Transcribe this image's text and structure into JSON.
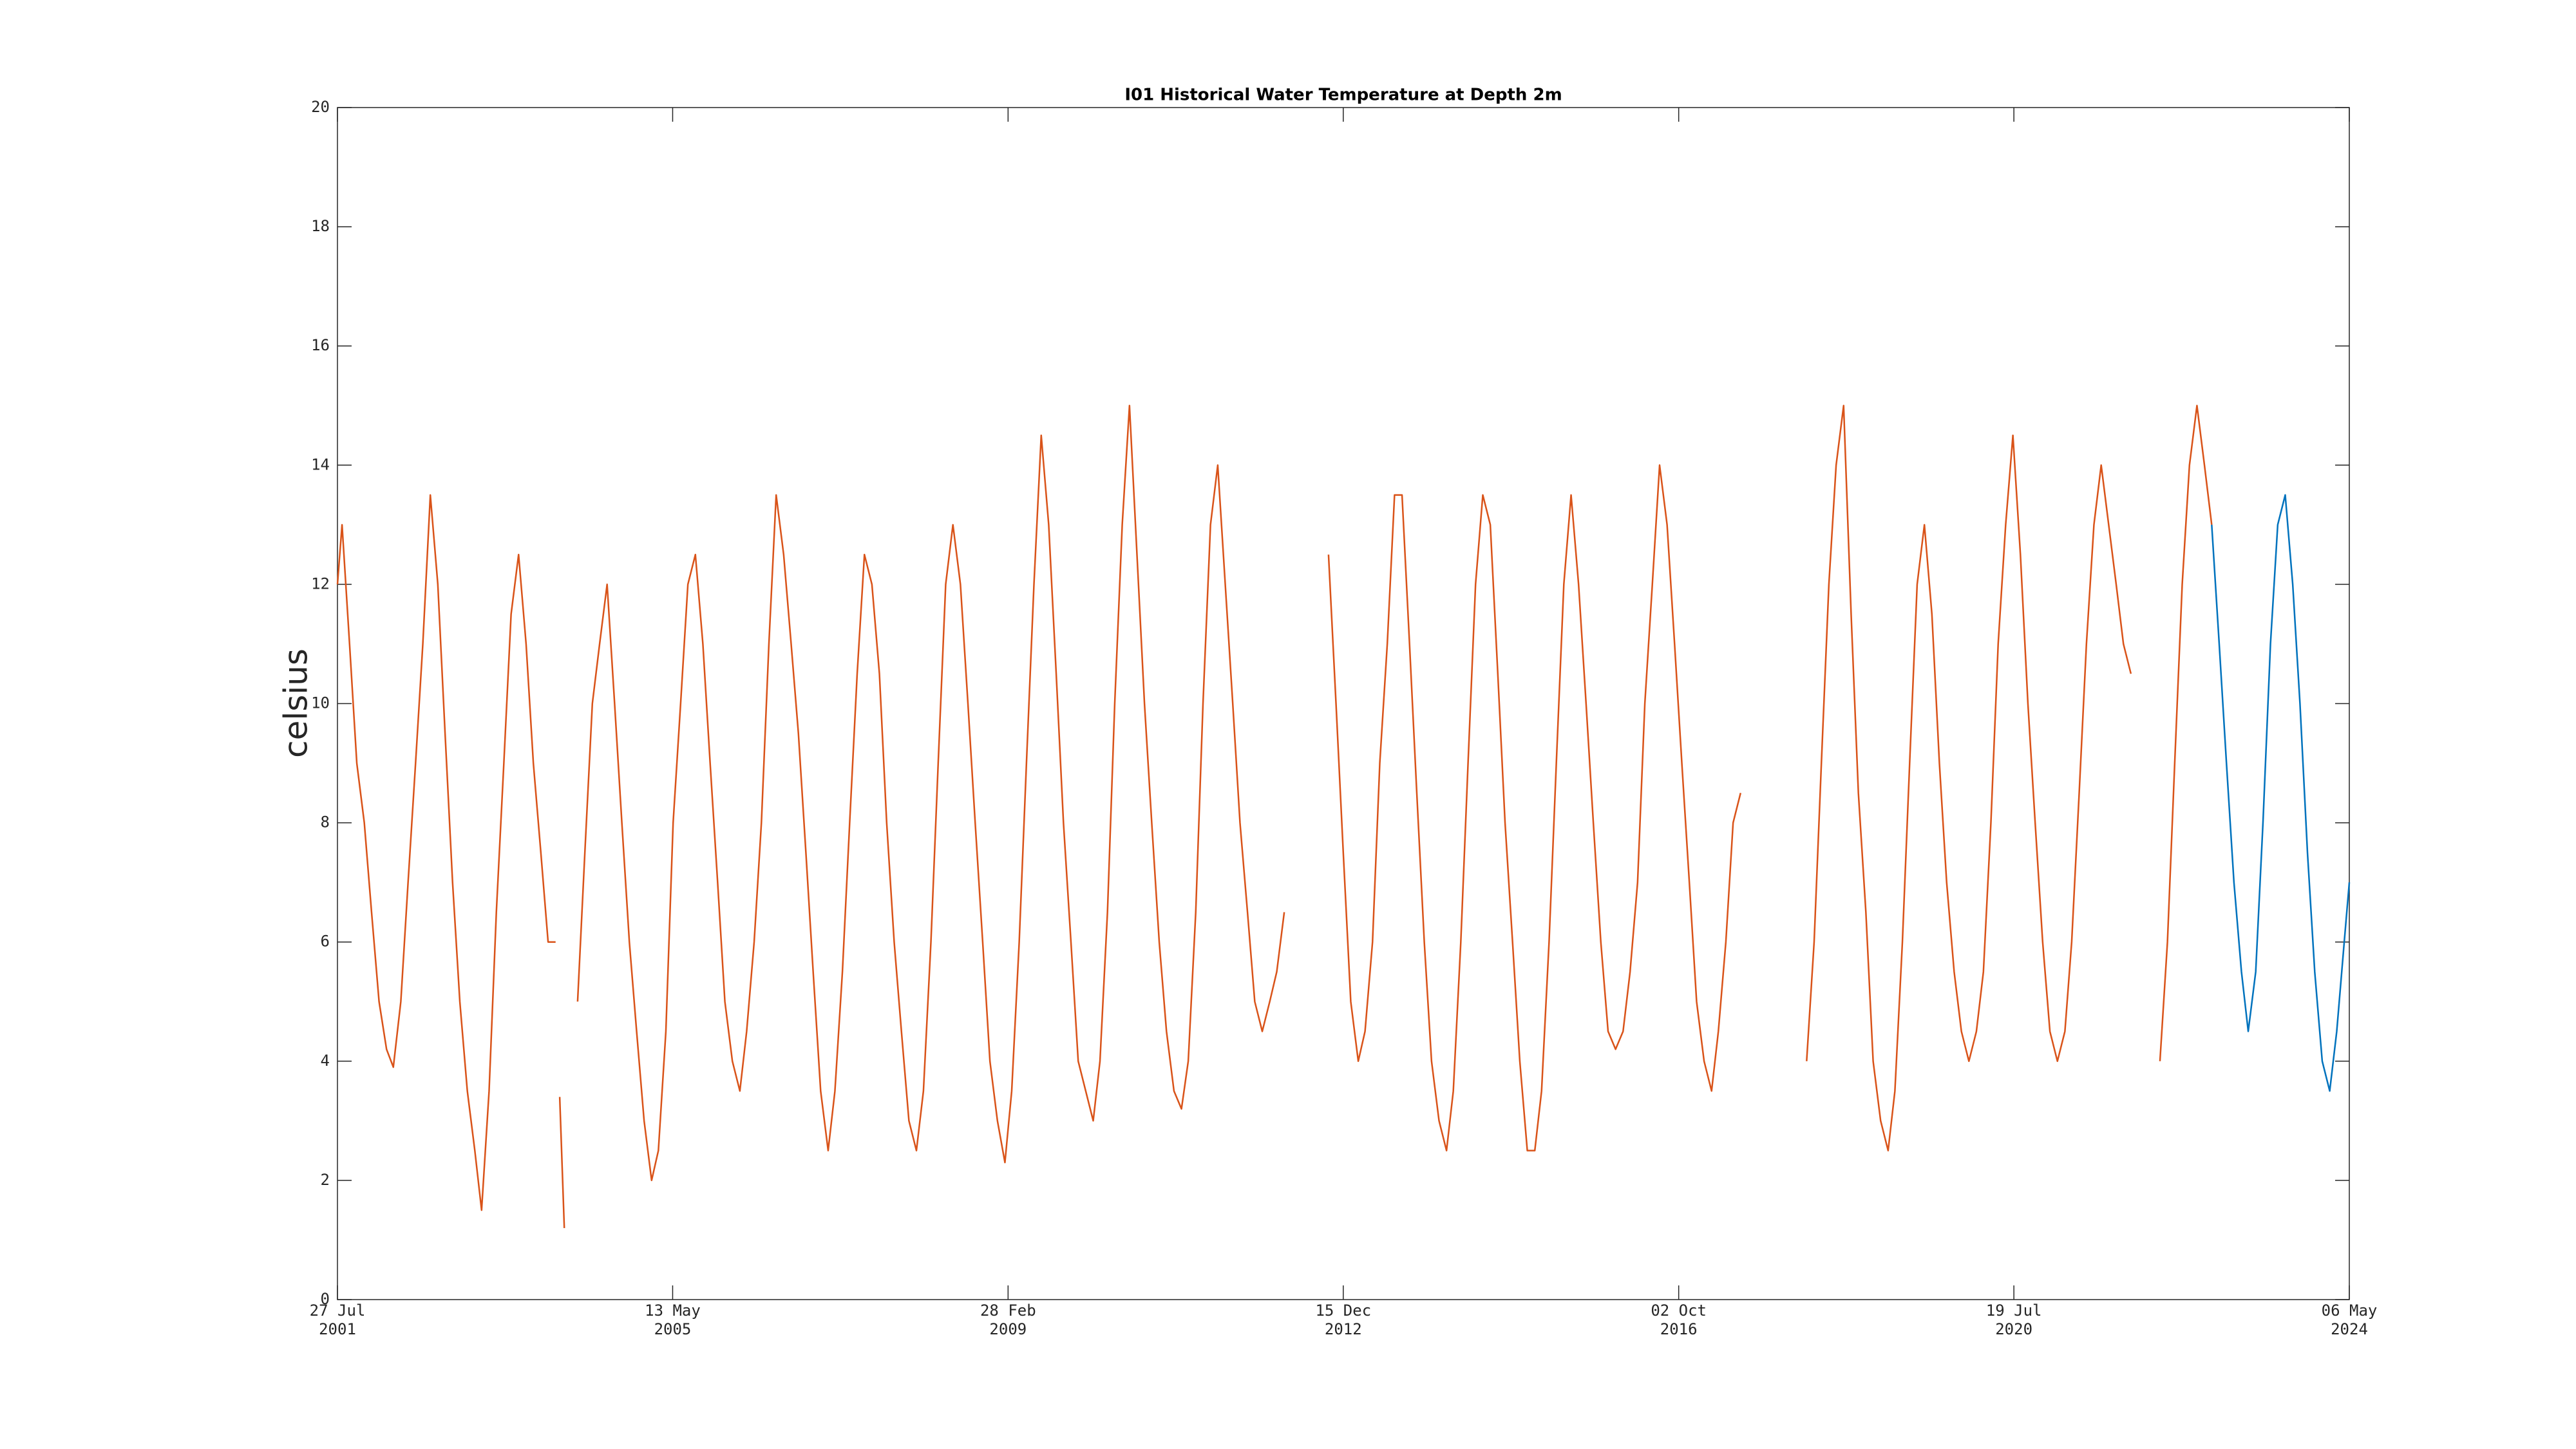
{
  "chart_data": {
    "type": "line",
    "title": "I01 Historical Water Temperature at Depth 2m",
    "y_label": "celsius",
    "xlim": [
      "2001-07-27",
      "2024-05-06"
    ],
    "xticks": [
      {
        "value": "2001-07-27",
        "label": [
          "27 Jul",
          "2001"
        ]
      },
      {
        "value": "2005-05-13",
        "label": [
          "13 May",
          "2005"
        ]
      },
      {
        "value": "2009-02-28",
        "label": [
          "28 Feb",
          "2009"
        ]
      },
      {
        "value": "2012-12-15",
        "label": [
          "15 Dec",
          "2012"
        ]
      },
      {
        "value": "2016-10-02",
        "label": [
          "02 Oct",
          "2016"
        ]
      },
      {
        "value": "2020-07-19",
        "label": [
          "19 Jul",
          "2020"
        ]
      },
      {
        "value": "2024-05-06",
        "label": [
          "06 May",
          "2024"
        ]
      }
    ],
    "ylim": [
      0,
      20
    ],
    "yticks": [
      0,
      2,
      4,
      6,
      8,
      10,
      12,
      14,
      16,
      18,
      20
    ],
    "grid": false,
    "series": [
      {
        "color": "#d95319",
        "x": [
          "2001-07-27",
          "2001-08-15",
          "2001-09-15",
          "2001-10-15",
          "2001-11-15",
          "2001-12-15",
          "2002-01-15",
          "2002-02-15",
          "2002-03-15",
          "2002-04-15",
          "2002-05-15",
          "2002-06-15",
          "2002-07-15",
          "2002-08-15",
          "2002-09-15",
          "2002-10-15",
          "2002-11-15",
          "2002-12-15",
          "2003-01-15",
          "2003-02-15",
          "2003-03-15",
          "2003-04-15",
          "2003-05-15",
          "2003-06-15",
          "2003-07-15",
          "2003-08-15",
          "2003-09-15",
          "2003-10-15",
          "2003-11-15",
          "2003-12-15",
          "2004-01-15",
          "2004-01-25",
          "2004-02-01",
          "2004-02-20",
          "2004-03-10",
          "2004-04-15",
          "2004-05-15",
          "2004-06-15",
          "2004-07-15",
          "2004-08-15",
          "2004-09-15",
          "2004-10-15",
          "2004-11-15",
          "2004-12-15",
          "2005-01-15",
          "2005-02-15",
          "2005-03-15",
          "2005-04-15",
          "2005-05-15",
          "2005-06-15",
          "2005-07-15",
          "2005-08-15",
          "2005-09-15",
          "2005-10-15",
          "2005-11-15",
          "2005-12-15",
          "2006-01-15",
          "2006-02-15",
          "2006-03-15",
          "2006-04-15",
          "2006-05-15",
          "2006-06-15",
          "2006-07-15",
          "2006-08-15",
          "2006-09-15",
          "2006-10-15",
          "2006-11-15",
          "2006-12-15",
          "2007-01-15",
          "2007-02-15",
          "2007-03-15",
          "2007-04-15",
          "2007-05-15",
          "2007-06-15",
          "2007-07-15",
          "2007-08-15",
          "2007-09-15",
          "2007-10-15",
          "2007-11-15",
          "2007-12-15",
          "2008-01-15",
          "2008-02-15",
          "2008-03-15",
          "2008-04-15",
          "2008-05-15",
          "2008-06-15",
          "2008-07-15",
          "2008-08-15",
          "2008-09-15",
          "2008-10-15",
          "2008-11-15",
          "2008-12-15",
          "2009-01-15",
          "2009-02-15",
          "2009-03-15",
          "2009-04-15",
          "2009-05-15",
          "2009-06-15",
          "2009-07-15",
          "2009-08-15",
          "2009-09-15",
          "2009-10-15",
          "2009-11-15",
          "2009-12-15",
          "2010-01-15",
          "2010-02-15",
          "2010-03-15",
          "2010-04-15",
          "2010-05-15",
          "2010-06-15",
          "2010-07-15",
          "2010-08-15",
          "2010-09-15",
          "2010-10-15",
          "2010-11-15",
          "2010-12-15",
          "2011-01-15",
          "2011-02-15",
          "2011-03-15",
          "2011-04-15",
          "2011-05-15",
          "2011-06-15",
          "2011-07-15",
          "2011-08-15",
          "2011-09-15",
          "2011-10-15",
          "2011-11-15",
          "2011-12-15",
          "2012-01-15",
          "2012-02-15",
          "2012-03-15",
          "2012-04-15",
          "2012-07-01",
          "2012-10-15",
          "2012-11-15",
          "2012-12-15",
          "2013-01-15",
          "2013-02-15",
          "2013-03-15",
          "2013-04-15",
          "2013-05-15",
          "2013-06-15",
          "2013-07-15",
          "2013-08-15",
          "2013-09-15",
          "2013-10-15",
          "2013-11-15",
          "2013-12-15",
          "2014-01-15",
          "2014-02-15",
          "2014-03-15",
          "2014-04-15",
          "2014-05-15",
          "2014-06-15",
          "2014-07-15",
          "2014-08-15",
          "2014-09-15",
          "2014-10-15",
          "2014-11-15",
          "2014-12-15",
          "2015-01-15",
          "2015-02-15",
          "2015-03-15",
          "2015-04-15",
          "2015-05-15",
          "2015-06-15",
          "2015-07-15",
          "2015-08-15",
          "2015-09-15",
          "2015-10-15",
          "2015-11-15",
          "2015-12-15",
          "2016-01-15",
          "2016-02-15",
          "2016-03-15",
          "2016-04-15",
          "2016-05-15",
          "2016-06-15",
          "2016-07-15",
          "2016-08-15",
          "2016-09-15",
          "2016-10-15",
          "2016-11-15",
          "2016-12-15",
          "2017-01-15",
          "2017-02-15",
          "2017-03-15",
          "2017-04-15",
          "2017-05-15",
          "2017-06-15",
          "2017-10-01",
          "2018-03-15",
          "2018-04-15",
          "2018-05-15",
          "2018-06-15",
          "2018-07-15",
          "2018-08-15",
          "2018-09-15",
          "2018-10-15",
          "2018-11-15",
          "2018-12-15",
          "2019-01-15",
          "2019-02-15",
          "2019-03-15",
          "2019-04-15",
          "2019-05-15",
          "2019-06-15",
          "2019-07-15",
          "2019-08-15",
          "2019-09-15",
          "2019-10-15",
          "2019-11-15",
          "2019-12-15",
          "2020-01-15",
          "2020-02-15",
          "2020-03-15",
          "2020-04-15",
          "2020-05-15",
          "2020-06-15",
          "2020-07-15",
          "2020-08-15",
          "2020-09-15",
          "2020-10-15",
          "2020-11-15",
          "2020-12-15",
          "2021-01-15",
          "2021-02-15",
          "2021-03-15",
          "2021-04-15",
          "2021-05-15",
          "2021-06-15",
          "2021-07-15",
          "2021-08-15",
          "2021-09-15",
          "2021-10-15",
          "2021-11-15",
          "2022-01-15",
          "2022-03-15",
          "2022-04-15",
          "2022-05-15",
          "2022-06-15",
          "2022-07-15",
          "2022-08-15",
          "2022-09-15",
          "2022-10-15"
        ],
        "values": [
          12,
          13,
          11,
          9,
          8,
          6.5,
          5,
          4.2,
          3.9,
          5,
          7,
          9,
          11,
          13.5,
          12,
          9.5,
          7,
          5,
          3.5,
          2.5,
          1.5,
          3.5,
          6.5,
          9,
          11.5,
          12.5,
          11,
          9,
          7.5,
          6,
          6,
          null,
          3.4,
          1.2,
          null,
          5,
          7.5,
          10,
          11,
          12,
          10,
          8,
          6,
          4.5,
          3,
          2,
          2.5,
          4.5,
          8,
          10,
          12,
          12.5,
          11,
          9,
          7,
          5,
          4,
          3.5,
          4.5,
          6,
          8,
          11,
          13.5,
          12.5,
          11,
          9.5,
          7.5,
          5.5,
          3.5,
          2.5,
          3.5,
          5.5,
          8,
          10.5,
          12.5,
          12,
          10.5,
          8,
          6,
          4.5,
          3,
          2.5,
          3.5,
          6,
          9,
          12,
          13,
          12,
          10,
          8,
          6,
          4,
          3,
          2.3,
          3.5,
          6,
          9,
          12,
          14.5,
          13,
          10.5,
          8,
          6,
          4,
          3.5,
          3,
          4,
          6.5,
          10,
          13,
          15,
          12.5,
          10,
          8,
          6,
          4.5,
          3.5,
          3.2,
          4,
          6.5,
          10,
          13,
          14,
          12,
          10,
          8,
          6.5,
          5,
          4.5,
          5,
          5.5,
          6.5,
          null,
          12.5,
          10,
          7.5,
          5,
          4,
          4.5,
          6,
          9,
          11,
          13.5,
          13.5,
          11,
          8.5,
          6,
          4,
          3,
          2.5,
          3.5,
          6,
          9,
          12,
          13.5,
          13,
          10.5,
          8,
          6,
          4,
          2.5,
          2.5,
          3.5,
          6,
          9,
          12,
          13.5,
          12,
          10,
          8,
          6,
          4.5,
          4.2,
          4.5,
          5.5,
          7,
          10,
          12,
          14,
          13,
          11,
          9,
          7,
          5,
          4,
          3.5,
          4.5,
          6,
          8,
          8.5,
          null,
          4,
          6,
          9,
          12,
          14,
          15,
          11.5,
          8.5,
          6.5,
          4,
          3,
          2.5,
          3.5,
          6,
          9,
          12,
          13,
          11.5,
          9,
          7,
          5.5,
          4.5,
          4,
          4.5,
          5.5,
          8,
          11,
          13,
          14.5,
          12.5,
          10,
          8,
          6,
          4.5,
          4,
          4.5,
          6,
          8.5,
          11,
          13,
          14,
          13,
          12,
          11,
          10.5,
          null,
          4,
          6,
          9,
          12,
          14,
          15,
          14,
          13
        ]
      },
      {
        "color": "#0072bd",
        "x": [
          "2022-10-15",
          "2022-11-15",
          "2022-12-15",
          "2023-01-15",
          "2023-02-15",
          "2023-03-15",
          "2023-04-15",
          "2023-05-15",
          "2023-06-15",
          "2023-07-15",
          "2023-08-15",
          "2023-09-15",
          "2023-10-15",
          "2023-11-15",
          "2023-12-15",
          "2024-01-15",
          "2024-02-15",
          "2024-03-15",
          "2024-04-15",
          "2024-05-06"
        ],
        "values": [
          13,
          11,
          9,
          7,
          5.5,
          4.5,
          5.5,
          8,
          11,
          13,
          13.5,
          12,
          10,
          7.5,
          5.5,
          4,
          3.5,
          4.5,
          6,
          7
        ]
      }
    ]
  }
}
